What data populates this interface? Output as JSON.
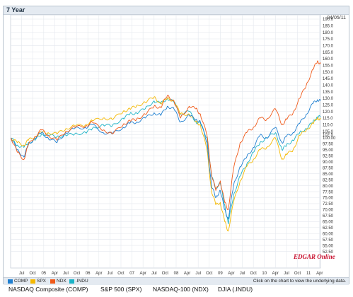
{
  "header": {
    "title": "7 Year",
    "date": "04/05/11"
  },
  "colors": {
    "COMP": "#1f7fd0",
    "SPX": "#f5b800",
    "NDX": "#f05a1a",
    "INDU": "#1bb3c6"
  },
  "legend": [
    {
      "key": "COMP",
      "label": "COMP"
    },
    {
      "key": "SPX",
      "label": "SPX"
    },
    {
      "key": "NDX",
      "label": "NDX"
    },
    {
      "key": "INDU",
      "label": ".INDU"
    }
  ],
  "click_note": "Click on the chart to view the underlying data.",
  "watermark": "EDGAR Online",
  "bottom_labels": [
    "NASDAQ Composite (COMP)",
    "S&P 500 (SPX)",
    "NASDAQ-100 (NDX)",
    "DJIA (.INDU)"
  ],
  "chart_data": {
    "type": "line",
    "title": "7 Year",
    "ylim": [
      50,
      190
    ],
    "y_ticks": [
      52.5,
      55,
      57.5,
      60,
      62.5,
      65,
      67.5,
      70,
      72.5,
      75,
      77.5,
      80,
      82.5,
      85,
      87.5,
      90,
      92.5,
      95,
      97.5,
      100,
      102.5,
      105,
      110,
      115,
      120,
      125,
      130,
      135,
      140,
      145,
      150,
      155,
      160,
      165,
      170,
      175,
      180,
      185,
      190
    ],
    "y_tick_labels": [
      "52.50",
      "55.00",
      "57.50",
      "60.00",
      "62.50",
      "65.00",
      "67.50",
      "70.00",
      "72.50",
      "75.00",
      "77.50",
      "80.00",
      "82.50",
      "85.00",
      "87.50",
      "90.00",
      "92.50",
      "95.00",
      "97.50",
      "100.00",
      "102.5",
      "105.0",
      "110.0",
      "115.0",
      "120.0",
      "125.0",
      "130.0",
      "135.0",
      "140.0",
      "145.0",
      "150.0",
      "155.0",
      "160.0",
      "165.0",
      "170.0",
      "175.0",
      "180.0",
      "185.0",
      "190.0"
    ],
    "x_tick_labels": [
      "Jul",
      "Oct",
      "05",
      "Apr",
      "Jul",
      "Oct",
      "06",
      "Apr",
      "Jul",
      "Oct",
      "07",
      "Apr",
      "Jul",
      "Oct",
      "08",
      "Apr",
      "Jul",
      "Oct",
      "09",
      "Apr",
      "Jul",
      "Oct",
      "10",
      "Apr",
      "Jul",
      "Oct",
      "11",
      "Apr"
    ],
    "x_range": [
      2004.25,
      2011.27
    ],
    "series": [
      {
        "name": "COMP",
        "x": [
          2004.26,
          2004.4,
          2004.55,
          2004.65,
          2004.8,
          2004.95,
          2005.1,
          2005.3,
          2005.5,
          2005.7,
          2005.95,
          2006.1,
          2006.35,
          2006.55,
          2006.8,
          2006.95,
          2007.1,
          2007.3,
          2007.5,
          2007.65,
          2007.8,
          2007.95,
          2008.1,
          2008.3,
          2008.45,
          2008.55,
          2008.7,
          2008.8,
          2008.9,
          2009.0,
          2009.1,
          2009.18,
          2009.3,
          2009.45,
          2009.6,
          2009.75,
          2009.9,
          2010.05,
          2010.25,
          2010.4,
          2010.5,
          2010.65,
          2010.8,
          2010.95,
          2011.1,
          2011.2,
          2011.27
        ],
        "values": [
          100,
          95,
          92,
          97,
          100,
          104,
          100,
          98,
          104,
          107,
          108,
          110,
          104,
          103,
          108,
          111,
          112,
          115,
          119,
          117,
          124,
          122,
          112,
          117,
          114,
          112,
          98,
          80,
          75,
          78,
          70,
          66,
          80,
          88,
          92,
          96,
          102,
          100,
          108,
          98,
          101,
          104,
          111,
          118,
          126,
          129,
          128
        ]
      },
      {
        "name": "SPX",
        "x": [
          2004.26,
          2004.4,
          2004.55,
          2004.65,
          2004.8,
          2004.95,
          2005.1,
          2005.3,
          2005.5,
          2005.7,
          2005.95,
          2006.1,
          2006.35,
          2006.55,
          2006.8,
          2006.95,
          2007.1,
          2007.3,
          2007.5,
          2007.65,
          2007.8,
          2007.95,
          2008.1,
          2008.3,
          2008.45,
          2008.55,
          2008.7,
          2008.8,
          2008.9,
          2009.0,
          2009.1,
          2009.18,
          2009.3,
          2009.45,
          2009.6,
          2009.75,
          2009.9,
          2010.05,
          2010.25,
          2010.4,
          2010.5,
          2010.65,
          2010.8,
          2010.95,
          2011.1,
          2011.2,
          2011.27
        ],
        "values": [
          100,
          98,
          97,
          99,
          101,
          104,
          104,
          103,
          107,
          109,
          110,
          113,
          115,
          114,
          120,
          122,
          124,
          127,
          131,
          126,
          130,
          128,
          118,
          118,
          112,
          110,
          95,
          78,
          72,
          73,
          65,
          61,
          73,
          82,
          88,
          91,
          95,
          96,
          100,
          91,
          93,
          95,
          102,
          106,
          111,
          115,
          114
        ]
      },
      {
        "name": "NDX",
        "x": [
          2004.26,
          2004.4,
          2004.55,
          2004.65,
          2004.8,
          2004.95,
          2005.1,
          2005.3,
          2005.5,
          2005.7,
          2005.95,
          2006.1,
          2006.35,
          2006.55,
          2006.8,
          2006.95,
          2007.1,
          2007.3,
          2007.5,
          2007.65,
          2007.8,
          2007.95,
          2008.1,
          2008.3,
          2008.45,
          2008.55,
          2008.7,
          2008.8,
          2008.9,
          2009.0,
          2009.1,
          2009.18,
          2009.3,
          2009.45,
          2009.6,
          2009.75,
          2009.9,
          2010.05,
          2010.25,
          2010.4,
          2010.5,
          2010.65,
          2010.8,
          2010.95,
          2011.1,
          2011.2,
          2011.27
        ],
        "values": [
          100,
          94,
          91,
          97,
          101,
          106,
          102,
          99,
          105,
          108,
          109,
          112,
          106,
          103,
          110,
          113,
          114,
          118,
          124,
          123,
          132,
          128,
          115,
          124,
          122,
          118,
          102,
          85,
          78,
          82,
          73,
          70,
          87,
          98,
          104,
          108,
          115,
          114,
          122,
          110,
          114,
          119,
          130,
          140,
          152,
          158,
          156
        ]
      },
      {
        "name": ".INDU",
        "x": [
          2004.26,
          2004.4,
          2004.55,
          2004.65,
          2004.8,
          2004.95,
          2005.1,
          2005.3,
          2005.5,
          2005.7,
          2005.95,
          2006.1,
          2006.35,
          2006.55,
          2006.8,
          2006.95,
          2007.1,
          2007.3,
          2007.5,
          2007.65,
          2007.8,
          2007.95,
          2008.1,
          2008.3,
          2008.45,
          2008.55,
          2008.7,
          2008.8,
          2008.9,
          2009.0,
          2009.1,
          2009.18,
          2009.3,
          2009.45,
          2009.6,
          2009.75,
          2009.9,
          2010.05,
          2010.25,
          2010.4,
          2010.5,
          2010.65,
          2010.8,
          2010.95,
          2011.1,
          2011.2,
          2011.27
        ],
        "values": [
          100,
          97,
          96,
          98,
          99,
          103,
          102,
          101,
          102,
          103,
          104,
          107,
          110,
          109,
          115,
          118,
          119,
          122,
          128,
          126,
          130,
          127,
          118,
          120,
          112,
          111,
          100,
          84,
          79,
          81,
          72,
          64,
          76,
          84,
          89,
          94,
          98,
          100,
          104,
          95,
          97,
          99,
          104,
          107,
          112,
          116,
          116
        ]
      }
    ]
  }
}
